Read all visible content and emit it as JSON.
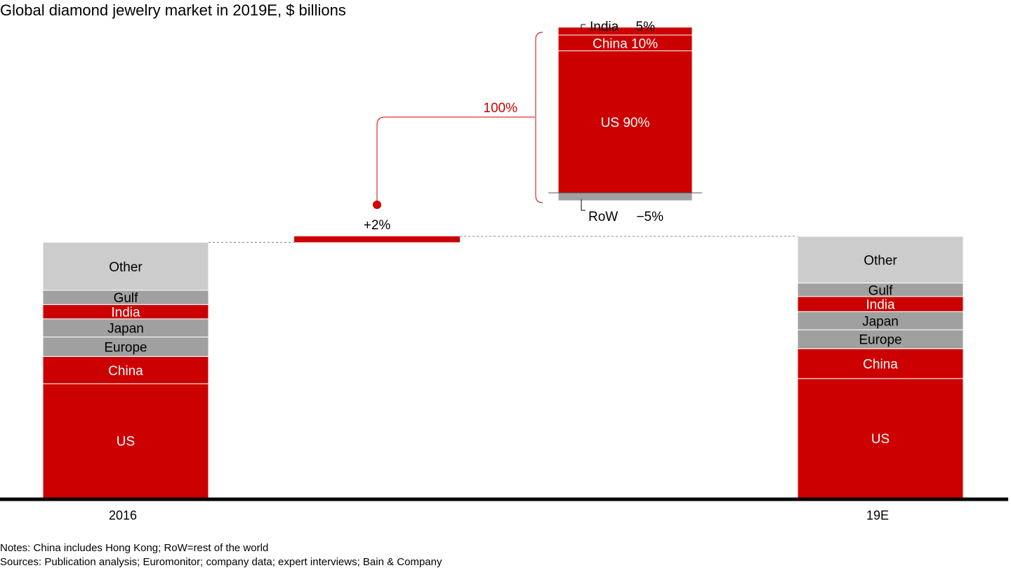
{
  "title": "Global diamond jewelry market in 2019E, $ billions",
  "colors": {
    "red": "#cc0000",
    "dark_gray": "#a0a0a0",
    "light_gray": "#cccccc",
    "black": "#000000"
  },
  "chart_data": {
    "type": "bar",
    "subtype": "stacked waterfall",
    "title": "Global diamond jewelry market in 2019E, $ billions",
    "xlabel": "",
    "ylabel": "",
    "ylim": [
      0,
      100
    ],
    "categories": [
      "2016",
      "19E"
    ],
    "series": [
      {
        "name": "US",
        "color": "#cc0000",
        "values": [
          44,
          46
        ]
      },
      {
        "name": "China",
        "color": "#cc0000",
        "values": [
          10.5,
          11.5
        ]
      },
      {
        "name": "Europe",
        "color": "#a0a0a0",
        "values": [
          7.5,
          7.3
        ]
      },
      {
        "name": "Japan",
        "color": "#a0a0a0",
        "values": [
          7,
          7
        ]
      },
      {
        "name": "India",
        "color": "#cc0000",
        "values": [
          5.5,
          5.8
        ]
      },
      {
        "name": "Gulf",
        "color": "#a0a0a0",
        "values": [
          5.5,
          5.2
        ]
      },
      {
        "name": "Other",
        "color": "#cccccc",
        "values": [
          18.5,
          18
        ]
      }
    ],
    "change": {
      "label": "+2%",
      "from_total": 98.5,
      "to_total": 100.8
    },
    "breakdown": {
      "total_label": "100%",
      "segments": [
        {
          "label": "US 90%",
          "share": 90,
          "color": "#cc0000"
        },
        {
          "label": "China 10%",
          "share": 10,
          "color": "#cc0000"
        },
        {
          "label": "India",
          "value_label": "5%",
          "share": 5,
          "color": "#cc0000"
        },
        {
          "label": "RoW",
          "value_label": "−5%",
          "share": -5,
          "color": "#a0a0a0"
        }
      ]
    }
  },
  "notes": {
    "line1": "Notes: China includes Hong Kong; RoW=rest of the world",
    "line2": "Sources: Publication analysis; Euromonitor; company data; expert interviews; Bain & Company"
  }
}
